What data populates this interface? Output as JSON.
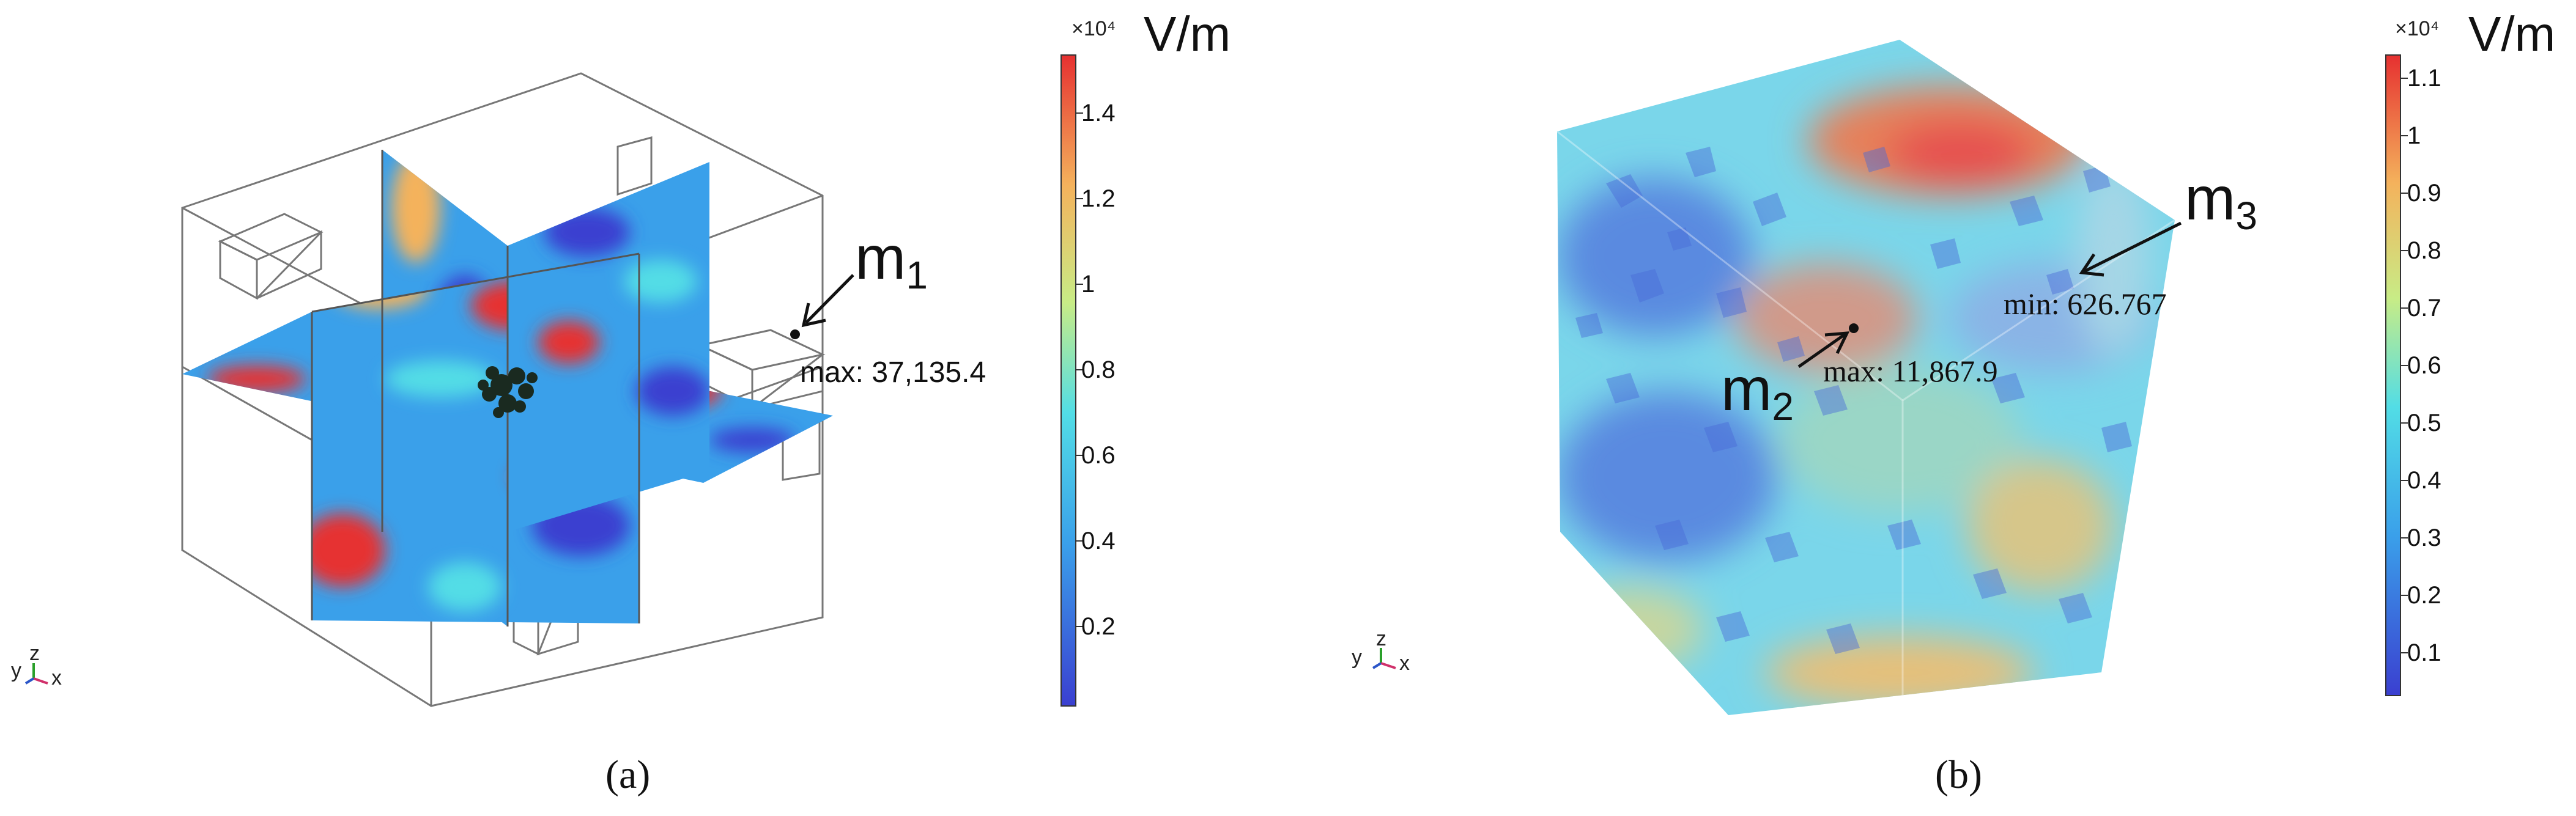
{
  "panels": [
    {
      "id": "a",
      "caption": "(a)",
      "colorbar": {
        "exponent": "×10⁴",
        "unit": "V/m",
        "ticks": [
          "1.4",
          "1.2",
          "1",
          "0.8",
          "0.6",
          "0.4",
          "0.2"
        ]
      },
      "annotation": {
        "label": "max: 37,135.4"
      },
      "marker": {
        "base": "m",
        "sub": "1"
      },
      "axes_triad": {
        "y": "y",
        "z": "z",
        "x": "x"
      }
    },
    {
      "id": "b",
      "caption": "(b)",
      "colorbar": {
        "exponent": "×10⁴",
        "unit": "V/m",
        "ticks": [
          "1.1",
          "1",
          "0.9",
          "0.8",
          "0.7",
          "0.6",
          "0.5",
          "0.4",
          "0.3",
          "0.2",
          "0.1"
        ]
      },
      "annotations": [
        {
          "label": "max: 11,867.9"
        },
        {
          "label": "min: 626.767"
        }
      ],
      "markers": [
        {
          "base": "m",
          "sub": "2"
        },
        {
          "base": "m",
          "sub": "3"
        }
      ],
      "axes_triad": {
        "y": "y",
        "z": "z",
        "x": "x"
      }
    }
  ],
  "colormap": [
    "#3a3fd0",
    "#3aa0ea",
    "#52dde6",
    "#c8ec86",
    "#f4b25c",
    "#e63030"
  ]
}
